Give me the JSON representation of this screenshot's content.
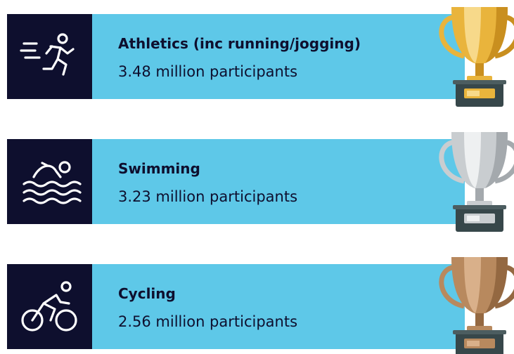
{
  "items": [
    {
      "name": "Athletics (inc running/jogging)",
      "participants": "3.48 million participants"
    },
    {
      "name": "Swimming",
      "participants": "3.23 million participants"
    },
    {
      "name": "Cycling",
      "participants": "2.56 million participants"
    }
  ]
}
